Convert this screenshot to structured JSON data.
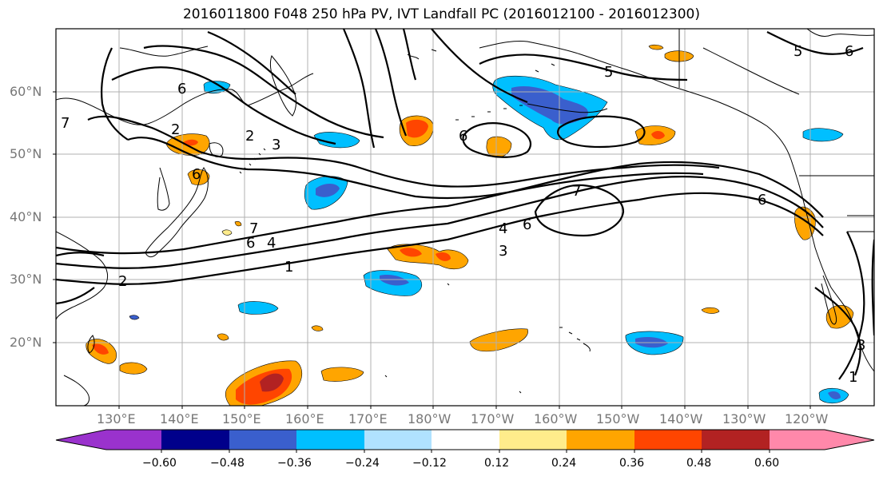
{
  "title": "2016011800 F048 250 hPa PV, IVT Landfall PC (2016012100 - 2016012300)",
  "lat_labels": [
    "60°N",
    "50°N",
    "40°N",
    "30°N",
    "20°N"
  ],
  "lon_labels": [
    "130°E",
    "140°E",
    "150°E",
    "160°E",
    "170°E",
    "180°W",
    "170°W",
    "160°W",
    "150°W",
    "140°W",
    "130°W",
    "120°W"
  ],
  "colorbar": {
    "ticks": [
      "−0.60",
      "−0.48",
      "−0.36",
      "−0.24",
      "−0.12",
      "0.12",
      "0.24",
      "0.36",
      "0.48",
      "0.60"
    ],
    "colors": [
      "#9a32cd",
      "#00008b",
      "#3a5fcd",
      "#00bfff",
      "#b0e2ff",
      "#ffffff",
      "#ffec8b",
      "#ffa500",
      "#ff4500",
      "#b22222",
      "#ff88aa"
    ]
  },
  "contour_labels": {
    "c1": "6",
    "c2": "2",
    "c3": "3",
    "c4": "5",
    "c5": "5",
    "c6": "6",
    "c7": "6",
    "c8": "7",
    "c9": "6",
    "c10": "4",
    "c11": "3",
    "c12": "6",
    "c13": "7",
    "c14": "6",
    "c15": "4",
    "c16": "1",
    "c17": "2",
    "c18": "1",
    "c19": "3",
    "c20": "2",
    "c21": "6",
    "c22": "7"
  },
  "colors": {
    "contour": "#000000",
    "grid": "#b0b0b0",
    "coast": "#000000"
  }
}
